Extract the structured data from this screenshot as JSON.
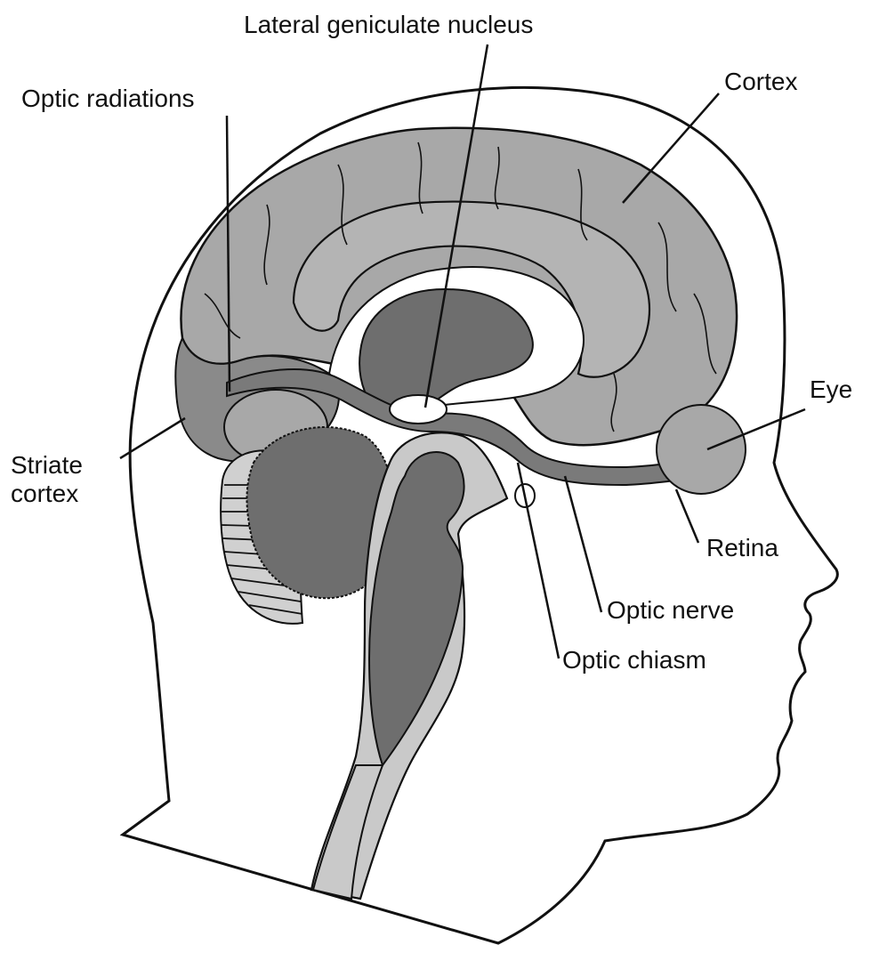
{
  "diagram": {
    "labels": {
      "lgn": "Lateral geniculate nucleus",
      "optic_radiations": "Optic radiations",
      "cortex": "Cortex",
      "eye": "Eye",
      "striate_cortex": "Striate\ncortex",
      "retina": "Retina",
      "optic_nerve": "Optic nerve",
      "optic_chiasm": "Optic chiasm"
    },
    "colors": {
      "outline": "#111111",
      "brain_gray": "#a8a8a8",
      "dark_gray": "#6e6e6e",
      "light_gray": "#c9c9c9",
      "ventricle_white": "#ffffff"
    }
  }
}
